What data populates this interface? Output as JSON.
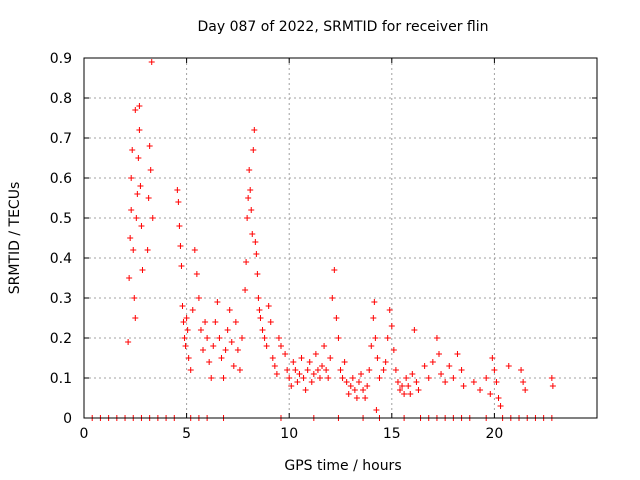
{
  "chart_data": {
    "type": "scatter",
    "title": "Day 087 of 2022, SRMTID for receiver flin",
    "xlabel": "GPS time / hours",
    "ylabel": "SRMTID / TECUs",
    "xlim": [
      0,
      25
    ],
    "ylim": [
      0,
      0.9
    ],
    "xticks": [
      "0",
      "5",
      "10",
      "15",
      "20"
    ],
    "xtick_values": [
      0,
      5,
      10,
      15,
      20
    ],
    "yticks": [
      "0",
      "0.1",
      "0.2",
      "0.3",
      "0.4",
      "0.5",
      "0.6",
      "0.7",
      "0.8",
      "0.9"
    ],
    "ytick_values": [
      0,
      0.1,
      0.2,
      0.3,
      0.4,
      0.5,
      0.6,
      0.7,
      0.8,
      0.9
    ],
    "grid": true,
    "marker": "+",
    "color": "#ff0000",
    "series": [
      {
        "name": "SRMTID",
        "points": [
          [
            0.4,
            0
          ],
          [
            0.8,
            0
          ],
          [
            1.2,
            0
          ],
          [
            1.6,
            0
          ],
          [
            2.0,
            0
          ],
          [
            2.4,
            0
          ],
          [
            2.8,
            0
          ],
          [
            3.2,
            0
          ],
          [
            3.6,
            0
          ],
          [
            4.0,
            0
          ],
          [
            4.4,
            0
          ],
          [
            5.2,
            0
          ],
          [
            5.6,
            0
          ],
          [
            6.0,
            0
          ],
          [
            6.8,
            0
          ],
          [
            9.6,
            0
          ],
          [
            11.2,
            0
          ],
          [
            12.4,
            0
          ],
          [
            13.6,
            0
          ],
          [
            14.4,
            0
          ],
          [
            15.6,
            0
          ],
          [
            16.4,
            0
          ],
          [
            16.8,
            0
          ],
          [
            17.2,
            0
          ],
          [
            17.6,
            0
          ],
          [
            18.0,
            0
          ],
          [
            18.4,
            0
          ],
          [
            18.8,
            0
          ],
          [
            19.6,
            0
          ],
          [
            20.4,
            0
          ],
          [
            20.8,
            0
          ],
          [
            21.2,
            0
          ],
          [
            21.6,
            0
          ],
          [
            22.0,
            0
          ],
          [
            22.4,
            0
          ],
          [
            22.8,
            0
          ],
          [
            2.15,
            0.19
          ],
          [
            2.2,
            0.35
          ],
          [
            2.25,
            0.45
          ],
          [
            2.3,
            0.52
          ],
          [
            2.3,
            0.6
          ],
          [
            2.35,
            0.67
          ],
          [
            2.4,
            0.42
          ],
          [
            2.45,
            0.3
          ],
          [
            2.5,
            0.25
          ],
          [
            2.5,
            0.77
          ],
          [
            2.55,
            0.5
          ],
          [
            2.6,
            0.56
          ],
          [
            2.65,
            0.65
          ],
          [
            2.7,
            0.72
          ],
          [
            2.7,
            0.78
          ],
          [
            2.75,
            0.58
          ],
          [
            2.8,
            0.48
          ],
          [
            2.85,
            0.37
          ],
          [
            3.1,
            0.42
          ],
          [
            3.15,
            0.55
          ],
          [
            3.2,
            0.68
          ],
          [
            3.25,
            0.62
          ],
          [
            3.3,
            0.89
          ],
          [
            3.35,
            0.5
          ],
          [
            4.55,
            0.57
          ],
          [
            4.6,
            0.54
          ],
          [
            4.65,
            0.48
          ],
          [
            4.7,
            0.43
          ],
          [
            4.75,
            0.38
          ],
          [
            4.8,
            0.28
          ],
          [
            4.85,
            0.24
          ],
          [
            4.9,
            0.2
          ],
          [
            4.95,
            0.18
          ],
          [
            5.0,
            0.25
          ],
          [
            5.05,
            0.22
          ],
          [
            5.1,
            0.15
          ],
          [
            5.2,
            0.12
          ],
          [
            5.3,
            0.27
          ],
          [
            5.4,
            0.42
          ],
          [
            5.5,
            0.36
          ],
          [
            5.6,
            0.3
          ],
          [
            5.7,
            0.22
          ],
          [
            5.8,
            0.17
          ],
          [
            5.9,
            0.24
          ],
          [
            6.0,
            0.2
          ],
          [
            6.1,
            0.14
          ],
          [
            6.2,
            0.1
          ],
          [
            6.3,
            0.18
          ],
          [
            6.4,
            0.24
          ],
          [
            6.5,
            0.29
          ],
          [
            6.6,
            0.2
          ],
          [
            6.7,
            0.15
          ],
          [
            6.8,
            0.1
          ],
          [
            6.9,
            0.17
          ],
          [
            7.0,
            0.22
          ],
          [
            7.1,
            0.27
          ],
          [
            7.2,
            0.19
          ],
          [
            7.3,
            0.13
          ],
          [
            7.4,
            0.24
          ],
          [
            7.5,
            0.17
          ],
          [
            7.6,
            0.12
          ],
          [
            7.7,
            0.2
          ],
          [
            7.85,
            0.32
          ],
          [
            7.9,
            0.39
          ],
          [
            7.95,
            0.5
          ],
          [
            8.0,
            0.55
          ],
          [
            8.05,
            0.62
          ],
          [
            8.1,
            0.57
          ],
          [
            8.15,
            0.52
          ],
          [
            8.2,
            0.46
          ],
          [
            8.25,
            0.67
          ],
          [
            8.3,
            0.72
          ],
          [
            8.35,
            0.44
          ],
          [
            8.4,
            0.41
          ],
          [
            8.45,
            0.36
          ],
          [
            8.5,
            0.3
          ],
          [
            8.55,
            0.27
          ],
          [
            8.6,
            0.25
          ],
          [
            8.7,
            0.22
          ],
          [
            8.8,
            0.2
          ],
          [
            8.9,
            0.18
          ],
          [
            9.0,
            0.28
          ],
          [
            9.1,
            0.24
          ],
          [
            9.2,
            0.15
          ],
          [
            9.3,
            0.13
          ],
          [
            9.4,
            0.11
          ],
          [
            9.5,
            0.2
          ],
          [
            9.6,
            0.18
          ],
          [
            9.8,
            0.16
          ],
          [
            9.9,
            0.12
          ],
          [
            10.0,
            0.1
          ],
          [
            10.1,
            0.08
          ],
          [
            10.2,
            0.14
          ],
          [
            10.3,
            0.12
          ],
          [
            10.4,
            0.09
          ],
          [
            10.5,
            0.11
          ],
          [
            10.6,
            0.15
          ],
          [
            10.7,
            0.1
          ],
          [
            10.8,
            0.07
          ],
          [
            10.9,
            0.12
          ],
          [
            11.0,
            0.14
          ],
          [
            11.1,
            0.09
          ],
          [
            11.2,
            0.11
          ],
          [
            11.3,
            0.16
          ],
          [
            11.4,
            0.12
          ],
          [
            11.5,
            0.1
          ],
          [
            11.6,
            0.13
          ],
          [
            11.7,
            0.18
          ],
          [
            11.8,
            0.12
          ],
          [
            11.9,
            0.1
          ],
          [
            12.0,
            0.15
          ],
          [
            12.1,
            0.3
          ],
          [
            12.2,
            0.37
          ],
          [
            12.3,
            0.25
          ],
          [
            12.4,
            0.2
          ],
          [
            12.5,
            0.12
          ],
          [
            12.6,
            0.1
          ],
          [
            12.7,
            0.14
          ],
          [
            12.8,
            0.09
          ],
          [
            12.9,
            0.06
          ],
          [
            13.0,
            0.08
          ],
          [
            13.1,
            0.1
          ],
          [
            13.2,
            0.07
          ],
          [
            13.3,
            0.05
          ],
          [
            13.4,
            0.09
          ],
          [
            13.5,
            0.11
          ],
          [
            13.6,
            0.07
          ],
          [
            13.7,
            0.05
          ],
          [
            13.8,
            0.08
          ],
          [
            13.9,
            0.12
          ],
          [
            14.0,
            0.18
          ],
          [
            14.1,
            0.25
          ],
          [
            14.15,
            0.29
          ],
          [
            14.2,
            0.2
          ],
          [
            14.25,
            0.02
          ],
          [
            14.3,
            0.15
          ],
          [
            14.4,
            0.1
          ],
          [
            14.6,
            0.12
          ],
          [
            14.7,
            0.14
          ],
          [
            14.8,
            0.2
          ],
          [
            14.9,
            0.27
          ],
          [
            15.0,
            0.23
          ],
          [
            15.1,
            0.17
          ],
          [
            15.2,
            0.12
          ],
          [
            15.3,
            0.09
          ],
          [
            15.4,
            0.07
          ],
          [
            15.5,
            0.08
          ],
          [
            15.6,
            0.06
          ],
          [
            15.7,
            0.1
          ],
          [
            15.8,
            0.08
          ],
          [
            15.9,
            0.06
          ],
          [
            16.0,
            0.11
          ],
          [
            16.1,
            0.22
          ],
          [
            16.2,
            0.09
          ],
          [
            16.3,
            0.07
          ],
          [
            16.6,
            0.13
          ],
          [
            16.8,
            0.1
          ],
          [
            17.0,
            0.14
          ],
          [
            17.2,
            0.2
          ],
          [
            17.3,
            0.16
          ],
          [
            17.4,
            0.11
          ],
          [
            17.6,
            0.09
          ],
          [
            17.8,
            0.13
          ],
          [
            18.0,
            0.1
          ],
          [
            18.2,
            0.16
          ],
          [
            18.4,
            0.12
          ],
          [
            18.5,
            0.08
          ],
          [
            19.0,
            0.09
          ],
          [
            19.3,
            0.07
          ],
          [
            19.6,
            0.1
          ],
          [
            19.8,
            0.06
          ],
          [
            19.9,
            0.15
          ],
          [
            20.0,
            0.12
          ],
          [
            20.1,
            0.09
          ],
          [
            20.2,
            0.05
          ],
          [
            20.3,
            0.03
          ],
          [
            20.7,
            0.13
          ],
          [
            21.3,
            0.12
          ],
          [
            21.4,
            0.09
          ],
          [
            21.5,
            0.07
          ],
          [
            22.8,
            0.1
          ],
          [
            22.85,
            0.08
          ]
        ]
      }
    ]
  }
}
